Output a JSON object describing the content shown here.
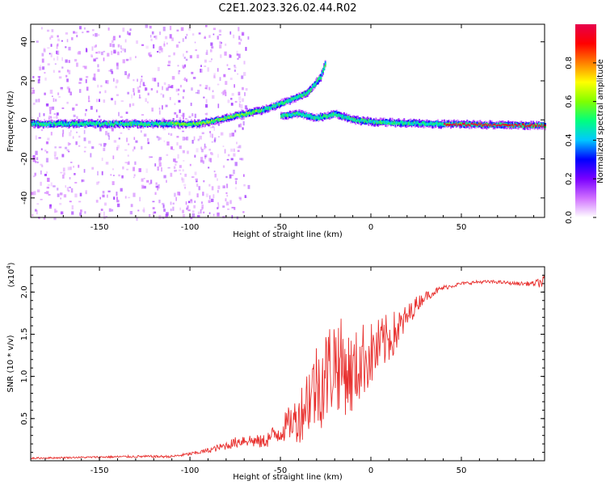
{
  "title": "C2E1.2023.326.02.44.R02",
  "colors": {
    "snr_line": "#e8302e",
    "spectrogram_min": "#ffffff",
    "spectrogram_max": "#e6004c"
  },
  "chart_data": [
    {
      "type": "heatmap",
      "name": "spectrogram",
      "xlabel": "Height of straight line (km)",
      "ylabel": "Frequency (Hz)",
      "xlim": [
        -188,
        96
      ],
      "ylim": [
        -50,
        49
      ],
      "xticks": [
        "-150",
        "-100",
        "-50",
        "0",
        "50"
      ],
      "yticks": [
        "40",
        "20",
        "0",
        "-20",
        "-40"
      ],
      "colorbar": {
        "label": "Normalized spectral amplitude",
        "range": [
          0.0,
          1.0
        ],
        "ticks": [
          "0.0",
          "0.2",
          "0.4",
          "0.6",
          "0.8"
        ],
        "colormap": [
          "#ffffff",
          "#d070ff",
          "#7a00ff",
          "#0000ff",
          "#00c8ff",
          "#00ff7f",
          "#80ff00",
          "#ffff00",
          "#ff8000",
          "#ff0000",
          "#e6004c"
        ]
      },
      "main_trace": [
        {
          "x": -188,
          "f": -2
        },
        {
          "x": -120,
          "f": -2
        },
        {
          "x": -95,
          "f": -2
        },
        {
          "x": -80,
          "f": 1
        },
        {
          "x": -60,
          "f": 5
        },
        {
          "x": -45,
          "f": 10
        },
        {
          "x": -35,
          "f": 14
        },
        {
          "x": -28,
          "f": 22
        },
        {
          "x": -25,
          "f": 30
        }
      ],
      "low_branch": [
        {
          "x": -50,
          "f": 2
        },
        {
          "x": -40,
          "f": 3
        },
        {
          "x": -30,
          "f": 1
        },
        {
          "x": -20,
          "f": 3
        },
        {
          "x": -10,
          "f": 0
        },
        {
          "x": 0,
          "f": -1
        },
        {
          "x": 30,
          "f": -2
        },
        {
          "x": 96,
          "f": -3
        }
      ]
    },
    {
      "type": "line",
      "name": "snr",
      "xlabel": "Height of straight line (km)",
      "ylabel": "SNR (10 * v/v)",
      "multiplier": "(x10",
      "multiplier_exp": "4",
      "multiplier_close": ")",
      "xlim": [
        -188,
        96
      ],
      "ylim": [
        0,
        2.3
      ],
      "xticks": [
        "-150",
        "-100",
        "-50",
        "0",
        "50"
      ],
      "yticks": [
        "2.0",
        "1.5",
        "1.0",
        "0.5"
      ],
      "series": [
        {
          "x": [
            -188,
            -160,
            -130,
            -110,
            -100,
            -90,
            -80,
            -70,
            -60,
            -50,
            -45,
            -40,
            -35,
            -30,
            -25,
            -20,
            -15,
            -10,
            -5,
            0,
            5,
            10,
            15,
            20,
            25,
            30,
            40,
            50,
            60,
            70,
            80,
            90,
            96
          ],
          "values": [
            0.03,
            0.04,
            0.05,
            0.05,
            0.08,
            0.12,
            0.18,
            0.25,
            0.22,
            0.35,
            0.45,
            0.5,
            0.75,
            0.9,
            1.0,
            1.2,
            1.1,
            1.0,
            1.2,
            1.25,
            1.35,
            1.45,
            1.55,
            1.7,
            1.85,
            1.95,
            2.05,
            2.1,
            2.12,
            2.12,
            2.1,
            2.1,
            2.12
          ],
          "noise": [
            0.01,
            0.01,
            0.015,
            0.015,
            0.02,
            0.03,
            0.05,
            0.08,
            0.08,
            0.15,
            0.2,
            0.3,
            0.45,
            0.55,
            0.6,
            0.6,
            0.55,
            0.5,
            0.45,
            0.4,
            0.35,
            0.3,
            0.25,
            0.15,
            0.1,
            0.06,
            0.03,
            0.02,
            0.02,
            0.02,
            0.02,
            0.03,
            0.08
          ]
        }
      ]
    }
  ]
}
